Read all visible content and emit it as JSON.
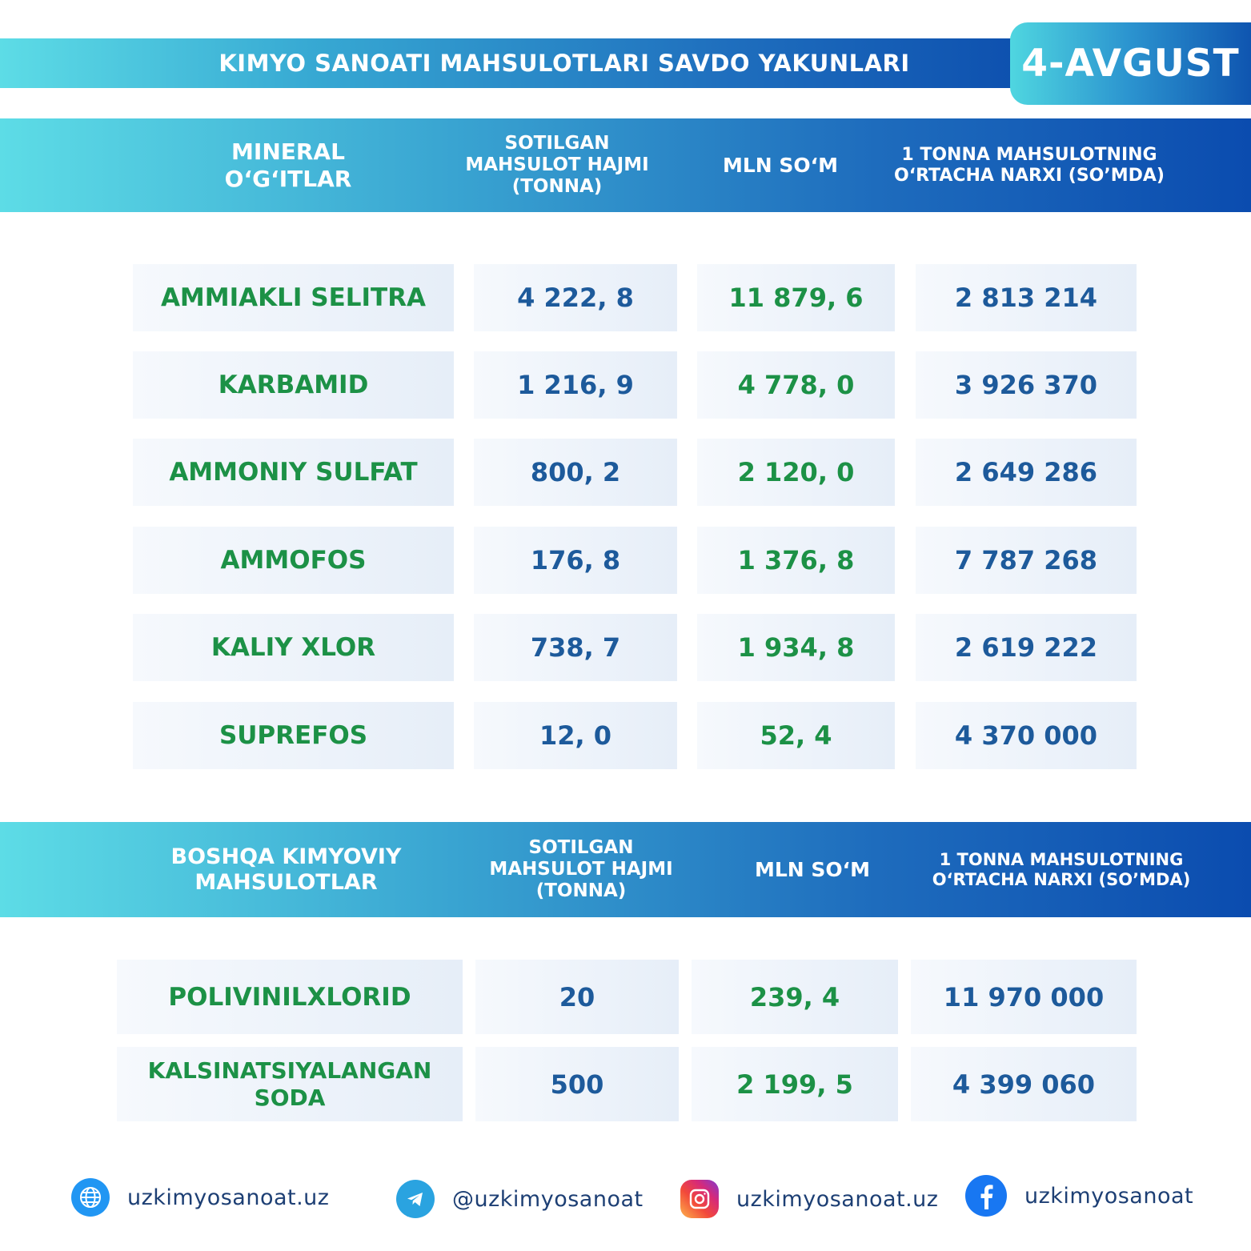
{
  "title": "KIMYO SANOATI MAHSULOTLARI SAVDO YAKUNLARI",
  "date": "4-AVGUST",
  "section1": {
    "headers": {
      "category": "MINERAL O‘G‘ITLAR",
      "volume": "SOTILGAN MAHSULOT HAJMI (TONNA)",
      "amount": "MLN SO‘M",
      "price": "1 TONNA MAHSULOTNING O‘RTACHA NARXI (SO’MDA)"
    },
    "rows": [
      {
        "name": "AMMIAKLI SELITRA",
        "volume": "4 222, 8",
        "amount": "11 879, 6",
        "price": "2 813 214"
      },
      {
        "name": "KARBAMID",
        "volume": "1 216, 9",
        "amount": "4 778, 0",
        "price": "3 926 370"
      },
      {
        "name": "AMMONIY SULFAT",
        "volume": "800, 2",
        "amount": "2 120, 0",
        "price": "2 649 286"
      },
      {
        "name": "AMMOFOS",
        "volume": "176, 8",
        "amount": "1 376, 8",
        "price": "7 787 268"
      },
      {
        "name": "KALIY XLOR",
        "volume": "738, 7",
        "amount": "1 934, 8",
        "price": "2 619 222"
      },
      {
        "name": "SUPREFOS",
        "volume": "12, 0",
        "amount": "52, 4",
        "price": "4 370 000"
      }
    ]
  },
  "section2": {
    "headers": {
      "category": "BOSHQA KIMYOVIY MAHSULOTLAR",
      "volume": "SOTILGAN MAHSULOT HAJMI (TONNA)",
      "amount": "MLN SO‘M",
      "price": "1 TONNA MAHSULOTNING O‘RTACHA NARXI (SO’MDA)"
    },
    "rows": [
      {
        "name": "POLIVINILXLORID",
        "volume": "20",
        "amount": "239, 4",
        "price": "11 970 000"
      },
      {
        "name": "KALSINATSIYALANGAN SODA",
        "volume": "500",
        "amount": "2 199, 5",
        "price": "4 399 060"
      }
    ]
  },
  "footer": {
    "website": {
      "icon": "globe-icon",
      "text": "uzkimyosanoat.uz"
    },
    "telegram": {
      "icon": "telegram-icon",
      "text": "@uzkimyosanoat"
    },
    "instagram": {
      "icon": "instagram-icon",
      "text": "uzkimyosanoat.uz"
    },
    "facebook": {
      "icon": "facebook-icon",
      "text": "uzkimyosanoat"
    }
  },
  "colors": {
    "accent_green": "#1c9146",
    "accent_blue": "#1d5a9b",
    "header_gradient_start": "#5ddce6",
    "header_gradient_end": "#0b4caf"
  }
}
